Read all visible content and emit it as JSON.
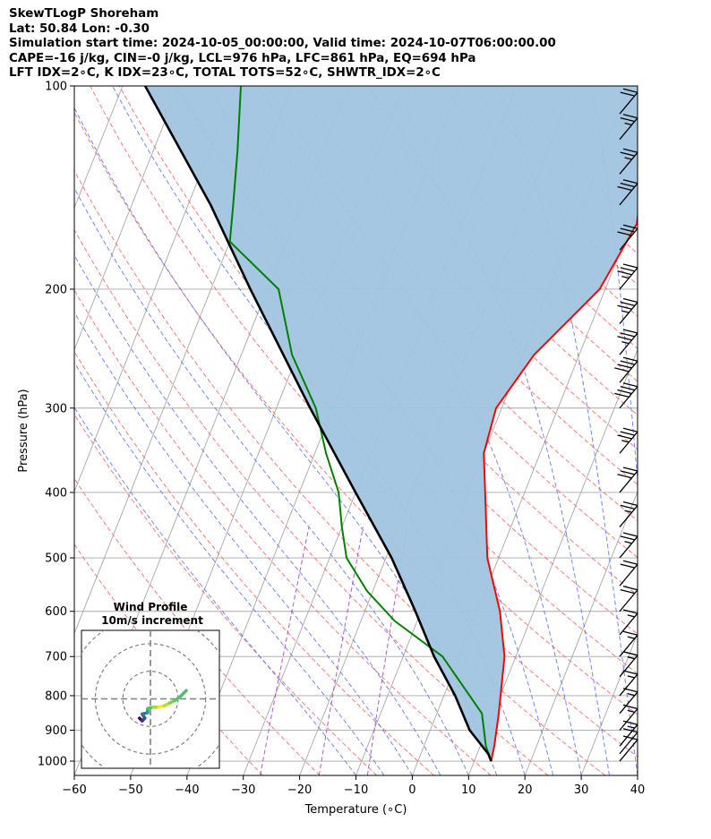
{
  "header": {
    "line1": "SkewTLogP Shoreham",
    "line2": "Lat: 50.84   Lon: -0.30",
    "line3": "Simulation start time: 2024-10-05_00:00:00, Valid time: 2024-10-07T06:00:00.00",
    "line4": "CAPE=-16 j/kg, CIN=-0 j/kg, LCL=976 hPa, LFC=861 hPa, EQ=694 hPa",
    "line5": "LFT IDX=2∘C, K IDX=23∘C, TOTAL TOTS=52∘C, SHWTR_IDX=2∘C"
  },
  "chart_data": {
    "type": "line",
    "subtype": "skew-t log-p",
    "xlabel": "Temperature (∘C)",
    "ylabel": "Pressure (hPa)",
    "xlim": [
      -60,
      40
    ],
    "ylim": [
      1050,
      100
    ],
    "y_scale": "log",
    "x_ticks": [
      -60,
      -50,
      -40,
      -30,
      -20,
      -10,
      0,
      10,
      20,
      30,
      40
    ],
    "y_ticks": [
      100,
      200,
      300,
      400,
      500,
      600,
      700,
      800,
      900,
      1000
    ],
    "x_tick_labels": [
      "−60",
      "−50",
      "−40",
      "−30",
      "−20",
      "−10",
      "0",
      "10",
      "20",
      "30",
      "40"
    ],
    "y_tick_labels": [
      "100",
      "200",
      "300",
      "400",
      "500",
      "600",
      "700",
      "800",
      "900",
      "1000"
    ],
    "grid": true,
    "colors": {
      "temperature": "#ff0000",
      "dewpoint": "#008000",
      "parcel": "#000000",
      "cape_fill": "#a0c4e0",
      "dry_adiabats": "#ff6060",
      "moist_adiabats": "#4060ff",
      "mixing_ratio": "#a040c0",
      "isotherms": "#a8a8a8"
    },
    "series": [
      {
        "key": "temperature",
        "points": [
          [
            13,
            1000
          ],
          [
            12.5,
            950
          ],
          [
            11,
            850
          ],
          [
            8,
            700
          ],
          [
            4,
            600
          ],
          [
            -2,
            500
          ],
          [
            -7,
            400
          ],
          [
            -10,
            350
          ],
          [
            -11,
            300
          ],
          [
            -8,
            250
          ],
          [
            -1,
            200
          ],
          [
            1,
            160
          ],
          [
            -2,
            130
          ],
          [
            -4,
            110
          ],
          [
            -5,
            100
          ]
        ]
      },
      {
        "key": "dewpoint",
        "points": [
          [
            13,
            1000
          ],
          [
            11,
            950
          ],
          [
            8,
            850
          ],
          [
            -3,
            700
          ],
          [
            -14,
            620
          ],
          [
            -21,
            560
          ],
          [
            -27,
            500
          ],
          [
            -30,
            450
          ],
          [
            -33,
            400
          ],
          [
            -38,
            350
          ],
          [
            -43,
            300
          ],
          [
            -51,
            250
          ],
          [
            -58,
            200
          ],
          [
            -70,
            170
          ],
          [
            -72,
            150
          ],
          [
            -75,
            125
          ],
          [
            -79,
            100
          ]
        ]
      },
      {
        "key": "parcel",
        "points": [
          [
            13,
            1000
          ],
          [
            12,
            976
          ],
          [
            7,
            900
          ],
          [
            2,
            800
          ],
          [
            -4.5,
            700
          ],
          [
            -11,
            600
          ],
          [
            -19,
            500
          ],
          [
            -30,
            400
          ],
          [
            -44,
            300
          ],
          [
            -63,
            200
          ],
          [
            -76,
            150
          ],
          [
            -87,
            120
          ],
          [
            -96,
            100
          ]
        ]
      }
    ],
    "wind_barbs": [
      {
        "p": 1000,
        "speed": 10
      },
      {
        "p": 975,
        "speed": 10
      },
      {
        "p": 950,
        "speed": 15
      },
      {
        "p": 900,
        "speed": 15
      },
      {
        "p": 850,
        "speed": 15
      },
      {
        "p": 800,
        "speed": 15
      },
      {
        "p": 750,
        "speed": 15
      },
      {
        "p": 700,
        "speed": 15
      },
      {
        "p": 650,
        "speed": 15
      },
      {
        "p": 600,
        "speed": 20
      },
      {
        "p": 550,
        "speed": 20
      },
      {
        "p": 500,
        "speed": 25
      },
      {
        "p": 450,
        "speed": 25
      },
      {
        "p": 400,
        "speed": 30
      },
      {
        "p": 350,
        "speed": 35
      },
      {
        "p": 300,
        "speed": 40
      },
      {
        "p": 275,
        "speed": 40
      },
      {
        "p": 250,
        "speed": 35
      },
      {
        "p": 225,
        "speed": 35
      },
      {
        "p": 200,
        "speed": 35
      },
      {
        "p": 175,
        "speed": 30
      },
      {
        "p": 150,
        "speed": 30
      },
      {
        "p": 135,
        "speed": 25
      },
      {
        "p": 120,
        "speed": 25
      },
      {
        "p": 110,
        "speed": 20
      }
    ],
    "hodograph": {
      "title": "Wind Profile",
      "subtitle": "10m/s increment",
      "rings": [
        10,
        20,
        30
      ],
      "range": 25,
      "points": [
        [
          -4,
          -7
        ],
        [
          -3,
          -8
        ],
        [
          -2,
          -7
        ],
        [
          -3,
          -5.5
        ],
        [
          -1,
          -5
        ],
        [
          -1,
          -3.5
        ],
        [
          1,
          -3
        ],
        [
          3,
          -3
        ],
        [
          5,
          -2.5
        ],
        [
          7,
          -1.5
        ],
        [
          9,
          -0.5
        ],
        [
          11,
          1
        ],
        [
          13,
          3
        ]
      ]
    }
  }
}
